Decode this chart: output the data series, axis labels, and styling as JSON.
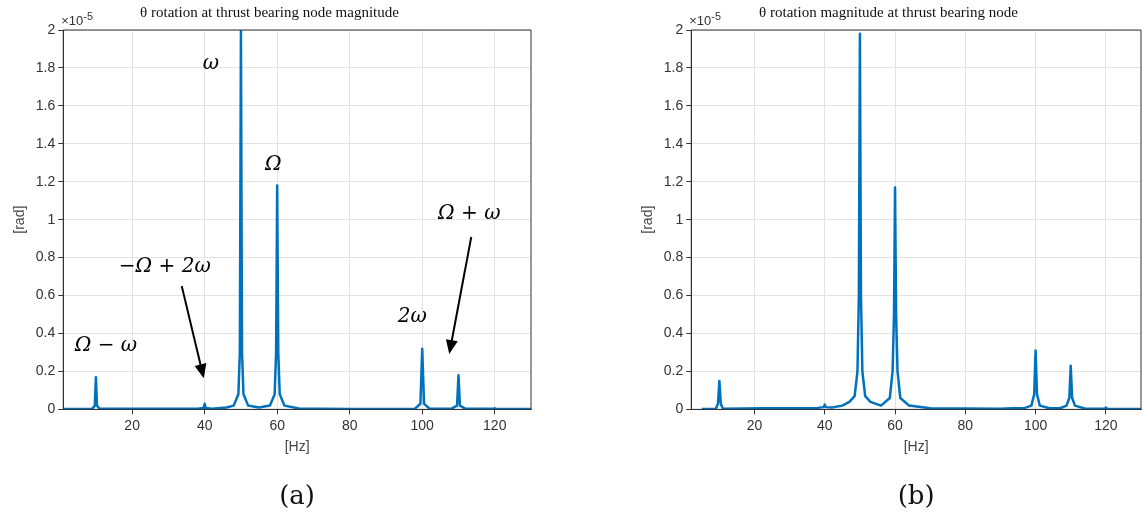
{
  "chart_data": [
    {
      "type": "line",
      "title": "θ rotation at thrust bearing node magnitude",
      "xlabel": "[Hz]",
      "ylabel": "[rad]",
      "x": [
        1,
        9,
        9.7,
        10,
        10.3,
        11,
        38,
        39.7,
        40,
        40.3,
        42,
        46,
        48,
        49.3,
        49.7,
        50,
        50.3,
        50.7,
        52,
        55,
        58,
        59.3,
        59.7,
        60,
        60.3,
        60.7,
        62,
        66,
        80,
        98,
        99.5,
        100,
        100.5,
        102,
        108,
        109.6,
        110,
        110.4,
        112,
        119.8,
        120,
        120.2,
        130
      ],
      "series": [
        {
          "color": "#0072bd",
          "values": [
            0.002,
            0.003,
            0.02,
            0.17,
            0.02,
            0.003,
            0.003,
            0.008,
            0.03,
            0.008,
            0.003,
            0.01,
            0.02,
            0.08,
            0.3,
            2.0,
            0.3,
            0.08,
            0.02,
            0.01,
            0.02,
            0.08,
            0.3,
            1.18,
            0.3,
            0.08,
            0.02,
            0.005,
            0.002,
            0.004,
            0.03,
            0.32,
            0.03,
            0.004,
            0.003,
            0.02,
            0.18,
            0.02,
            0.003,
            0.003,
            0.006,
            0.003,
            0.002
          ]
        }
      ],
      "xlim": [
        1,
        130
      ],
      "xticks": [
        20,
        40,
        60,
        80,
        100,
        120
      ],
      "ylim": [
        0,
        2
      ],
      "yticks": [
        0,
        0.2,
        0.4,
        0.6,
        0.8,
        1,
        1.2,
        1.4,
        1.6,
        1.8,
        2
      ],
      "grid": true,
      "marker": "none",
      "line_style": "solid",
      "annotations": [
        {
          "text": "ω",
          "x": 50,
          "y": 2.0
        },
        {
          "text": "Ω",
          "x": 60,
          "y": 1.18
        },
        {
          "text": "Ω − ω",
          "x": 10,
          "y": 0.17
        },
        "−Ω + 2ω",
        {
          "text": "2ω",
          "x": 100,
          "y": 0.32
        },
        "Ω + ω",
        "×10$^{-5}$",
        "(a)"
      ]
    },
    {
      "type": "line",
      "title": "θ rotation magnitude at thrust bearing node",
      "xlabel": "[Hz]",
      "ylabel": "[rad]",
      "x": [
        5,
        9,
        9.6,
        10,
        10.4,
        11,
        38,
        39.7,
        40,
        40.3,
        42,
        45,
        47,
        48.5,
        49.3,
        49.7,
        50,
        50.3,
        50.7,
        51.5,
        53,
        56,
        58.5,
        59.3,
        59.7,
        60,
        60.3,
        60.7,
        61.5,
        64,
        70,
        90,
        97,
        98.8,
        99.6,
        100,
        100.4,
        101.2,
        104,
        107,
        108.8,
        109.6,
        110,
        110.4,
        111.2,
        114,
        119.7,
        120,
        120.3,
        130
      ],
      "series": [
        {
          "color": "#0072bd",
          "values": [
            0.002,
            0.004,
            0.03,
            0.15,
            0.03,
            0.004,
            0.008,
            0.012,
            0.025,
            0.012,
            0.01,
            0.02,
            0.04,
            0.07,
            0.2,
            0.6,
            1.98,
            0.6,
            0.2,
            0.07,
            0.04,
            0.02,
            0.06,
            0.2,
            0.5,
            1.17,
            0.5,
            0.2,
            0.06,
            0.02,
            0.006,
            0.004,
            0.008,
            0.02,
            0.08,
            0.31,
            0.08,
            0.02,
            0.006,
            0.006,
            0.02,
            0.06,
            0.23,
            0.06,
            0.02,
            0.005,
            0.004,
            0.01,
            0.004,
            0.002
          ]
        }
      ],
      "xlim": [
        2,
        130
      ],
      "xticks": [
        20,
        40,
        60,
        80,
        100,
        120
      ],
      "ylim": [
        0,
        2
      ],
      "yticks": [
        0,
        0.2,
        0.4,
        0.6,
        0.8,
        1,
        1.2,
        1.4,
        1.6,
        1.8,
        2
      ],
      "grid": true,
      "marker": "none",
      "line_style": "solid",
      "annotations": [
        "×10$^{-5}$",
        "(b)"
      ]
    }
  ]
}
